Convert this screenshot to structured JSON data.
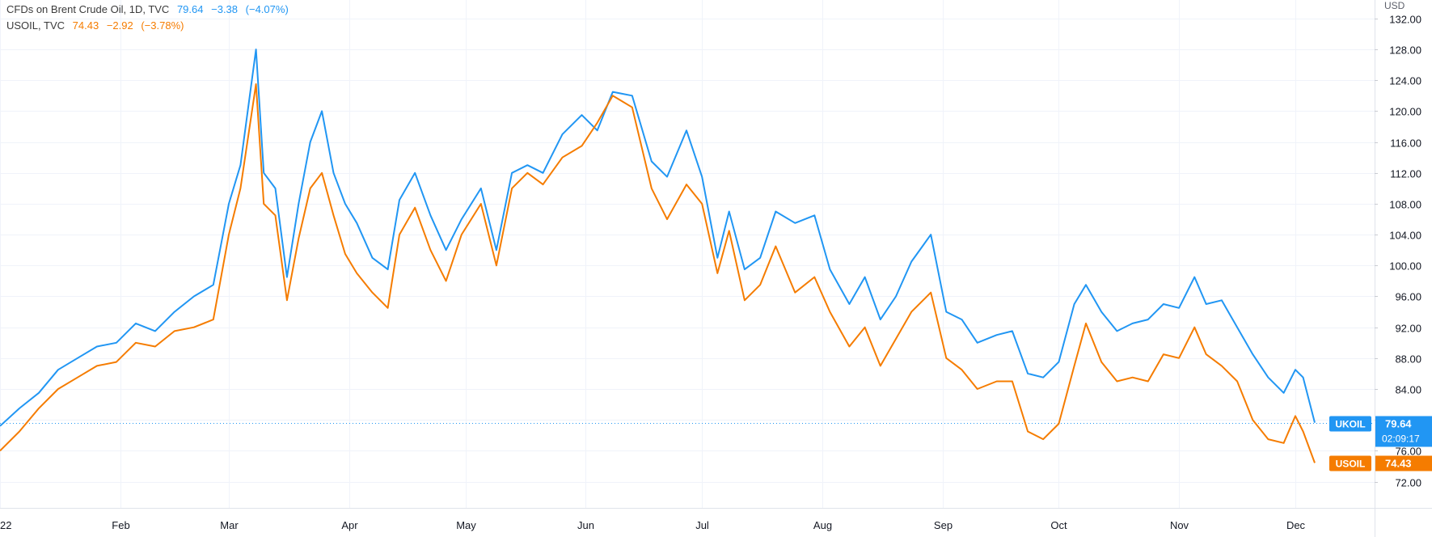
{
  "legend": [
    {
      "name": "CFDs on Brent Crude Oil, 1D, TVC",
      "last": "79.64",
      "change": "−3.38",
      "change_pct": "(−4.07%)",
      "color": "#2196f3"
    },
    {
      "name": "USOIL, TVC",
      "last": "74.43",
      "change": "−2.92",
      "change_pct": "(−3.78%)",
      "color": "#f57c00"
    }
  ],
  "currency": "USD",
  "tags": {
    "ukoil": {
      "symbol": "UKOIL",
      "price": "79.64",
      "countdown": "02:09:17"
    },
    "usoil": {
      "symbol": "USOIL",
      "price": "74.43"
    }
  },
  "chart_data": {
    "type": "line",
    "x_label_ticks": [
      "22",
      "Feb",
      "Mar",
      "Apr",
      "May",
      "Jun",
      "Jul",
      "Aug",
      "Sep",
      "Oct",
      "Nov",
      "Dec"
    ],
    "y_ticks": [
      72,
      76,
      80,
      84,
      88,
      92,
      96,
      100,
      104,
      108,
      112,
      116,
      120,
      124,
      128,
      132
    ],
    "y_tick_labels": [
      "72.00",
      "76.00",
      "80.00",
      "84.00",
      "88.00",
      "92.00",
      "96.00",
      "100.00",
      "104.00",
      "108.00",
      "112.00",
      "116.00",
      "120.00",
      "124.00",
      "128.00",
      "132.00"
    ],
    "ylim": [
      68.6,
      134.4
    ],
    "grid": true,
    "x_range": [
      "2022-01-01",
      "2022-12-06"
    ],
    "series": [
      {
        "name": "CFDs on Brent Crude Oil, 1D, TVC",
        "color": "#2196f3",
        "points": [
          [
            "2022-01-01",
            79.2
          ],
          [
            "2022-01-06",
            81.5
          ],
          [
            "2022-01-11",
            83.5
          ],
          [
            "2022-01-16",
            86.5
          ],
          [
            "2022-01-21",
            88.0
          ],
          [
            "2022-01-26",
            89.5
          ],
          [
            "2022-01-31",
            90.0
          ],
          [
            "2022-02-05",
            92.5
          ],
          [
            "2022-02-10",
            91.5
          ],
          [
            "2022-02-15",
            94.0
          ],
          [
            "2022-02-20",
            96.0
          ],
          [
            "2022-02-25",
            97.5
          ],
          [
            "2022-03-01",
            108.0
          ],
          [
            "2022-03-04",
            113.0
          ],
          [
            "2022-03-08",
            128.0
          ],
          [
            "2022-03-10",
            112.0
          ],
          [
            "2022-03-13",
            110.0
          ],
          [
            "2022-03-16",
            98.5
          ],
          [
            "2022-03-19",
            108.0
          ],
          [
            "2022-03-22",
            116.0
          ],
          [
            "2022-03-25",
            120.0
          ],
          [
            "2022-03-28",
            112.0
          ],
          [
            "2022-03-31",
            108.0
          ],
          [
            "2022-04-03",
            105.5
          ],
          [
            "2022-04-07",
            101.0
          ],
          [
            "2022-04-11",
            99.5
          ],
          [
            "2022-04-14",
            108.5
          ],
          [
            "2022-04-18",
            112.0
          ],
          [
            "2022-04-22",
            106.5
          ],
          [
            "2022-04-26",
            102.0
          ],
          [
            "2022-04-30",
            106.0
          ],
          [
            "2022-05-05",
            110.0
          ],
          [
            "2022-05-09",
            102.0
          ],
          [
            "2022-05-13",
            112.0
          ],
          [
            "2022-05-17",
            113.0
          ],
          [
            "2022-05-21",
            112.0
          ],
          [
            "2022-05-26",
            117.0
          ],
          [
            "2022-05-31",
            119.5
          ],
          [
            "2022-06-04",
            117.5
          ],
          [
            "2022-06-08",
            122.5
          ],
          [
            "2022-06-13",
            122.0
          ],
          [
            "2022-06-18",
            113.5
          ],
          [
            "2022-06-22",
            111.5
          ],
          [
            "2022-06-27",
            117.5
          ],
          [
            "2022-07-01",
            111.5
          ],
          [
            "2022-07-05",
            101.0
          ],
          [
            "2022-07-08",
            107.0
          ],
          [
            "2022-07-12",
            99.5
          ],
          [
            "2022-07-16",
            101.0
          ],
          [
            "2022-07-20",
            107.0
          ],
          [
            "2022-07-25",
            105.5
          ],
          [
            "2022-07-30",
            106.5
          ],
          [
            "2022-08-03",
            99.5
          ],
          [
            "2022-08-08",
            95.0
          ],
          [
            "2022-08-12",
            98.5
          ],
          [
            "2022-08-16",
            93.0
          ],
          [
            "2022-08-20",
            96.0
          ],
          [
            "2022-08-24",
            100.5
          ],
          [
            "2022-08-29",
            104.0
          ],
          [
            "2022-09-02",
            94.0
          ],
          [
            "2022-09-06",
            93.0
          ],
          [
            "2022-09-10",
            90.0
          ],
          [
            "2022-09-15",
            91.0
          ],
          [
            "2022-09-19",
            91.5
          ],
          [
            "2022-09-23",
            86.0
          ],
          [
            "2022-09-27",
            85.5
          ],
          [
            "2022-10-01",
            87.5
          ],
          [
            "2022-10-05",
            95.0
          ],
          [
            "2022-10-08",
            97.5
          ],
          [
            "2022-10-12",
            94.0
          ],
          [
            "2022-10-16",
            91.5
          ],
          [
            "2022-10-20",
            92.5
          ],
          [
            "2022-10-24",
            93.0
          ],
          [
            "2022-10-28",
            95.0
          ],
          [
            "2022-11-01",
            94.5
          ],
          [
            "2022-11-05",
            98.5
          ],
          [
            "2022-11-08",
            95.0
          ],
          [
            "2022-11-12",
            95.5
          ],
          [
            "2022-11-16",
            92.0
          ],
          [
            "2022-11-20",
            88.5
          ],
          [
            "2022-11-24",
            85.5
          ],
          [
            "2022-11-28",
            83.5
          ],
          [
            "2022-12-01",
            86.5
          ],
          [
            "2022-12-03",
            85.5
          ],
          [
            "2022-12-06",
            79.64
          ]
        ]
      },
      {
        "name": "USOIL, TVC",
        "color": "#f57c00",
        "points": [
          [
            "2022-01-01",
            76.0
          ],
          [
            "2022-01-06",
            78.5
          ],
          [
            "2022-01-11",
            81.5
          ],
          [
            "2022-01-16",
            84.0
          ],
          [
            "2022-01-21",
            85.5
          ],
          [
            "2022-01-26",
            87.0
          ],
          [
            "2022-01-31",
            87.5
          ],
          [
            "2022-02-05",
            90.0
          ],
          [
            "2022-02-10",
            89.5
          ],
          [
            "2022-02-15",
            91.5
          ],
          [
            "2022-02-20",
            92.0
          ],
          [
            "2022-02-25",
            93.0
          ],
          [
            "2022-03-01",
            104.0
          ],
          [
            "2022-03-04",
            110.0
          ],
          [
            "2022-03-08",
            123.5
          ],
          [
            "2022-03-10",
            108.0
          ],
          [
            "2022-03-13",
            106.5
          ],
          [
            "2022-03-16",
            95.5
          ],
          [
            "2022-03-19",
            103.5
          ],
          [
            "2022-03-22",
            110.0
          ],
          [
            "2022-03-25",
            112.0
          ],
          [
            "2022-03-28",
            106.5
          ],
          [
            "2022-03-31",
            101.5
          ],
          [
            "2022-04-03",
            99.0
          ],
          [
            "2022-04-07",
            96.5
          ],
          [
            "2022-04-11",
            94.5
          ],
          [
            "2022-04-14",
            104.0
          ],
          [
            "2022-04-18",
            107.5
          ],
          [
            "2022-04-22",
            102.0
          ],
          [
            "2022-04-26",
            98.0
          ],
          [
            "2022-04-30",
            104.0
          ],
          [
            "2022-05-05",
            108.0
          ],
          [
            "2022-05-09",
            100.0
          ],
          [
            "2022-05-13",
            110.0
          ],
          [
            "2022-05-17",
            112.0
          ],
          [
            "2022-05-21",
            110.5
          ],
          [
            "2022-05-26",
            114.0
          ],
          [
            "2022-05-31",
            115.5
          ],
          [
            "2022-06-04",
            118.5
          ],
          [
            "2022-06-08",
            122.0
          ],
          [
            "2022-06-13",
            120.5
          ],
          [
            "2022-06-18",
            110.0
          ],
          [
            "2022-06-22",
            106.0
          ],
          [
            "2022-06-27",
            110.5
          ],
          [
            "2022-07-01",
            108.0
          ],
          [
            "2022-07-05",
            99.0
          ],
          [
            "2022-07-08",
            104.5
          ],
          [
            "2022-07-12",
            95.5
          ],
          [
            "2022-07-16",
            97.5
          ],
          [
            "2022-07-20",
            102.5
          ],
          [
            "2022-07-25",
            96.5
          ],
          [
            "2022-07-30",
            98.5
          ],
          [
            "2022-08-03",
            94.0
          ],
          [
            "2022-08-08",
            89.5
          ],
          [
            "2022-08-12",
            92.0
          ],
          [
            "2022-08-16",
            87.0
          ],
          [
            "2022-08-20",
            90.5
          ],
          [
            "2022-08-24",
            94.0
          ],
          [
            "2022-08-29",
            96.5
          ],
          [
            "2022-09-02",
            88.0
          ],
          [
            "2022-09-06",
            86.5
          ],
          [
            "2022-09-10",
            84.0
          ],
          [
            "2022-09-15",
            85.0
          ],
          [
            "2022-09-19",
            85.0
          ],
          [
            "2022-09-23",
            78.5
          ],
          [
            "2022-09-27",
            77.5
          ],
          [
            "2022-10-01",
            79.5
          ],
          [
            "2022-10-05",
            87.0
          ],
          [
            "2022-10-08",
            92.5
          ],
          [
            "2022-10-12",
            87.5
          ],
          [
            "2022-10-16",
            85.0
          ],
          [
            "2022-10-20",
            85.5
          ],
          [
            "2022-10-24",
            85.0
          ],
          [
            "2022-10-28",
            88.5
          ],
          [
            "2022-11-01",
            88.0
          ],
          [
            "2022-11-05",
            92.0
          ],
          [
            "2022-11-08",
            88.5
          ],
          [
            "2022-11-12",
            87.0
          ],
          [
            "2022-11-16",
            85.0
          ],
          [
            "2022-11-20",
            80.0
          ],
          [
            "2022-11-24",
            77.5
          ],
          [
            "2022-11-28",
            77.0
          ],
          [
            "2022-12-01",
            80.5
          ],
          [
            "2022-12-03",
            78.5
          ],
          [
            "2022-12-06",
            74.43
          ]
        ]
      }
    ]
  }
}
